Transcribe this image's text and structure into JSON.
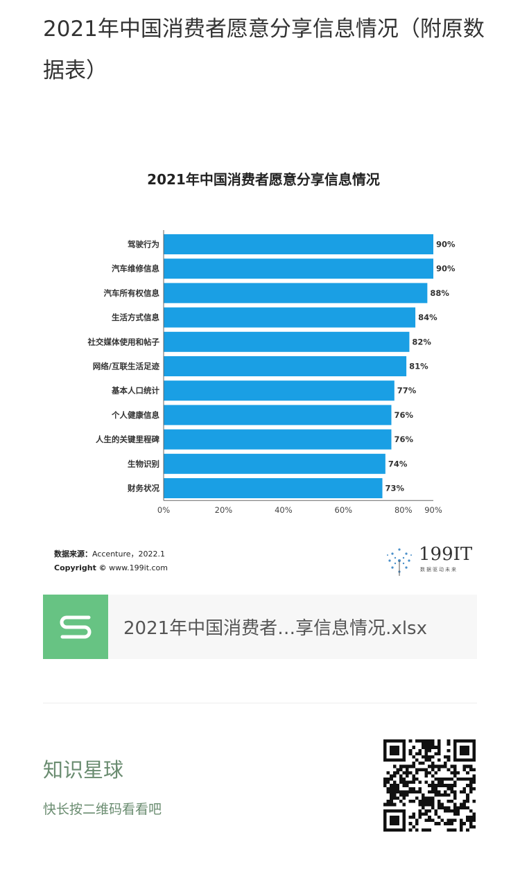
{
  "post": {
    "title": "2021年中国消费者愿意分享信息情况（附原数据表）"
  },
  "chart_data": {
    "type": "bar",
    "orientation": "horizontal",
    "title": "2021年中国消费者愿意分享信息情况",
    "categories": [
      "驾驶行为",
      "汽车维修信息",
      "汽车所有权信息",
      "生活方式信息",
      "社交媒体使用和帖子",
      "网络/互联生活足迹",
      "基本人口统计",
      "个人健康信息",
      "人生的关键里程碑",
      "生物识别",
      "财务状况"
    ],
    "values": [
      90,
      90,
      88,
      84,
      82,
      81,
      77,
      76,
      76,
      74,
      73
    ],
    "value_labels": [
      "90%",
      "90%",
      "88%",
      "84%",
      "82%",
      "81%",
      "77%",
      "76%",
      "76%",
      "74%",
      "73%"
    ],
    "x_ticks": [
      0,
      20,
      40,
      60,
      80,
      90
    ],
    "x_tick_labels": [
      "0%",
      "20%",
      "40%",
      "60%",
      "80%",
      "90%"
    ],
    "xlim": [
      0,
      90
    ],
    "bar_color": "#1a9fe4",
    "grid": false,
    "legend": "none"
  },
  "chart_footer": {
    "source_label": "数据来源：",
    "source_value": "Accenture，2022.1",
    "copyright_label": "Copyright ©",
    "copyright_value": "www.199it.com"
  },
  "logo": {
    "text": "199IT",
    "subtitle": "数据驱动未来"
  },
  "attachment": {
    "file_name": "2021年中国消费者…享信息情况.xlsx",
    "icon": "spreadsheet-s-icon",
    "icon_color": "#67c383"
  },
  "footer": {
    "brand": "知识星球",
    "hint": "快长按二维码看看吧",
    "qr_icon": "qr-code-icon"
  }
}
